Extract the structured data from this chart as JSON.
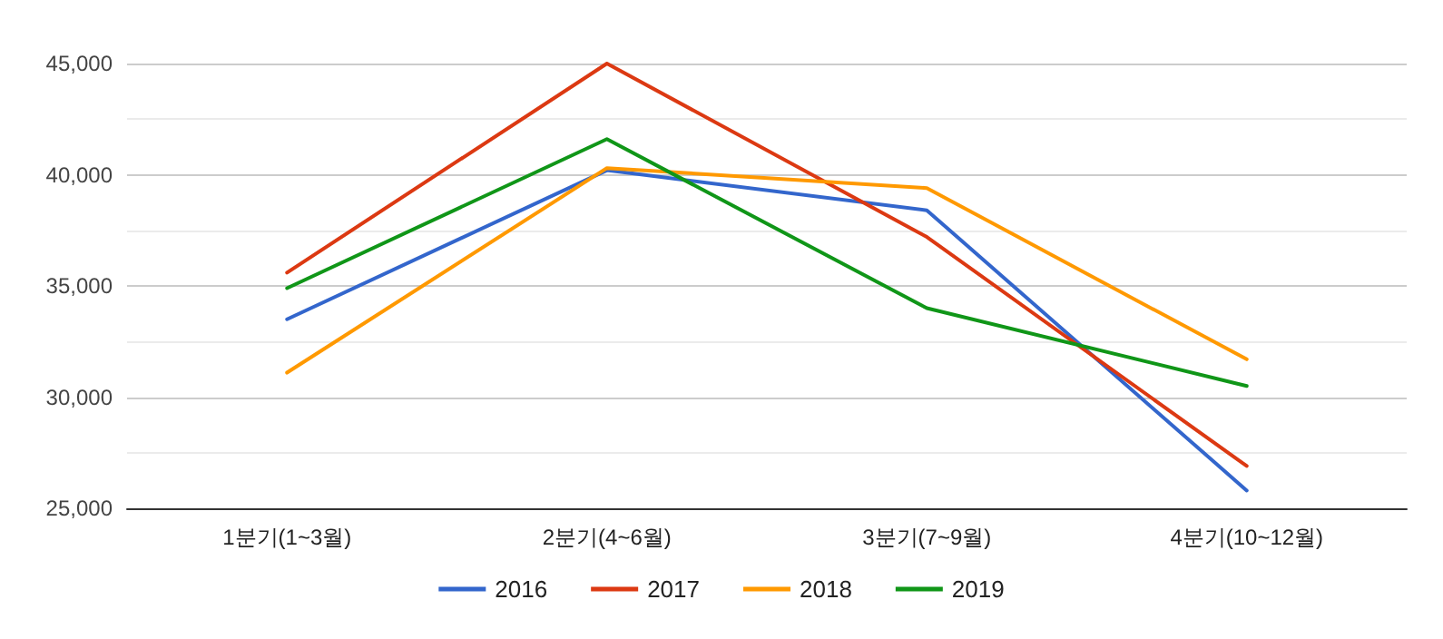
{
  "chart_data": {
    "type": "line",
    "categories": [
      "1분기(1~3월)",
      "2분기(4~6월)",
      "3분기(7~9월)",
      "4분기(10~12월)"
    ],
    "series": [
      {
        "name": "2016",
        "color": "#3366cc",
        "values": [
          33500,
          40200,
          38400,
          25800
        ]
      },
      {
        "name": "2017",
        "color": "#dc3912",
        "values": [
          35600,
          45000,
          37200,
          26900
        ]
      },
      {
        "name": "2018",
        "color": "#ff9900",
        "values": [
          31100,
          40300,
          39400,
          31700
        ]
      },
      {
        "name": "2019",
        "color": "#109618",
        "values": [
          34900,
          41600,
          34000,
          30500
        ]
      }
    ],
    "ylim": [
      25000,
      45000
    ],
    "yticks": [
      {
        "value": 25000,
        "label": "25,000"
      },
      {
        "value": 30000,
        "label": "30,000"
      },
      {
        "value": 35000,
        "label": "35,000"
      },
      {
        "value": 40000,
        "label": "40,000"
      },
      {
        "value": 45000,
        "label": "45,000"
      }
    ],
    "grid": "y",
    "legend": "bottom",
    "marker": "none",
    "line_style": "solid"
  }
}
